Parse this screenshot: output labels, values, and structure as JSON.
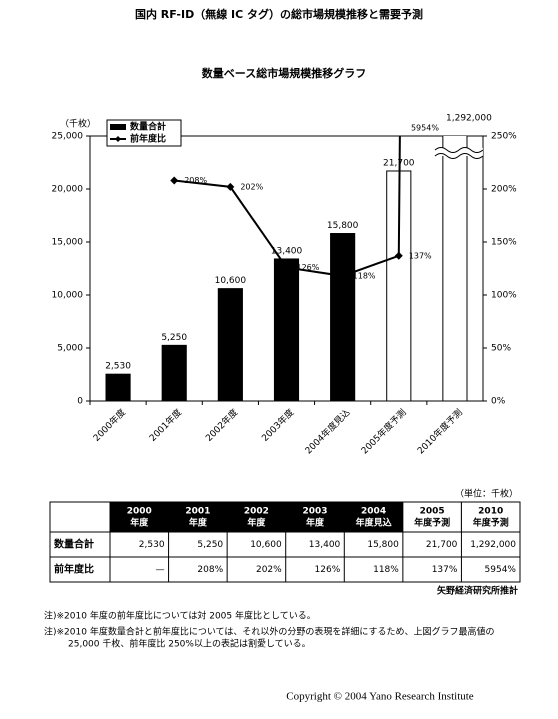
{
  "page_title": "国内 RF-ID（無線 IC タグ）の総市場規模推移と需要予測",
  "chart_data": {
    "type": "bar",
    "title": "数量ベース総市場規模推移グラフ",
    "y_label": "（千枚）",
    "categories": [
      "2000年度",
      "2001年度",
      "2002年度",
      "2003年度",
      "2004年度見込",
      "2005年度予測",
      "2010年度予測"
    ],
    "series": [
      {
        "name": "数量合計",
        "type": "bar",
        "color": "#000000",
        "fills": [
          "#000000",
          "#000000",
          "#000000",
          "#000000",
          "#000000",
          "#ffffff",
          "#ffffff"
        ],
        "values": [
          2530,
          5250,
          10600,
          13400,
          15800,
          21700,
          1292000
        ],
        "value_labels": [
          "2,530",
          "5,250",
          "10,600",
          "13,400",
          "15,800",
          "21,700",
          "1,292,000"
        ]
      },
      {
        "name": "前年度比",
        "type": "line",
        "axis": "y2",
        "color": "#000000",
        "values": [
          null,
          208,
          202,
          126,
          118,
          137,
          5954
        ],
        "value_labels": [
          null,
          "208%",
          "202%",
          "126%",
          "118%",
          "137%",
          "5954%"
        ]
      }
    ],
    "ylim": [
      0,
      25000
    ],
    "yticks": [
      0,
      {
        "value": 5000,
        "label": "5,000"
      },
      {
        "value": 10000,
        "label": "10,000"
      },
      {
        "value": 15000,
        "label": "15,000"
      },
      {
        "value": 20000,
        "label": "20,000"
      },
      {
        "value": 25000,
        "label": "25,000"
      }
    ],
    "y2lim": [
      0,
      250
    ],
    "y2ticks": [
      {
        "value": 0,
        "label": "0%"
      },
      {
        "value": 50,
        "label": "50%"
      },
      {
        "value": 100,
        "label": "100%"
      },
      {
        "value": 150,
        "label": "150%"
      },
      {
        "value": 200,
        "label": "200%"
      },
      {
        "value": 250,
        "label": "250%"
      }
    ],
    "legend": "top-left",
    "grid": false
  },
  "table": {
    "unit": "（単位：千枚）",
    "columns": [
      [
        "2000",
        "年度"
      ],
      [
        "2001",
        "年度"
      ],
      [
        "2002",
        "年度"
      ],
      [
        "2003",
        "年度"
      ],
      [
        "2004",
        "年度見込"
      ],
      [
        "2005",
        "年度予測"
      ],
      [
        "2010",
        "年度予測"
      ]
    ],
    "header_fills": [
      "#000000",
      "#000000",
      "#000000",
      "#000000",
      "#000000",
      "#ffffff",
      "#ffffff"
    ],
    "rows": [
      {
        "label": "数量合計",
        "cells": [
          "2,530",
          "5,250",
          "10,600",
          "13,400",
          "15,800",
          "21,700",
          "1,292,000"
        ]
      },
      {
        "label": "前年度比",
        "cells": [
          "—",
          "208%",
          "202%",
          "126%",
          "118%",
          "137%",
          "5954%"
        ]
      }
    ],
    "source": "矢野経済研究所推計"
  },
  "notes": [
    "注)※2010 年度の前年度比については対 2005 年度比としている。",
    "注)※2010 年度数量合計と前年度比については、それ以外の分野の表現を詳細にするため、上図グラフ最高値の",
    "25,000 千枚、前年度比 250%以上の表記は割愛している。"
  ],
  "copyright": "Copyright © 2004 Yano Research Institute"
}
